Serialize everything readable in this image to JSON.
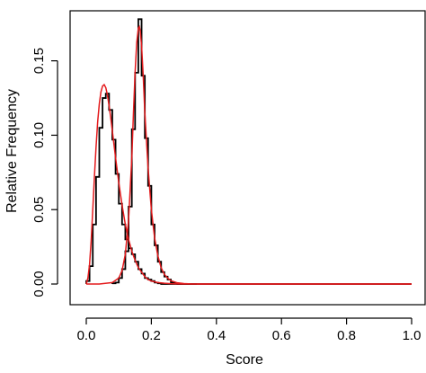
{
  "chart_data": {
    "type": "line",
    "xlabel": "Score",
    "ylabel": "Relative Frequency",
    "xlim": [
      0.0,
      1.0
    ],
    "ylim": [
      0.0,
      0.18
    ],
    "xticks": [
      0.0,
      0.2,
      0.4,
      0.6,
      0.8,
      1.0
    ],
    "xtick_labels": [
      "0.0",
      "0.2",
      "0.4",
      "0.6",
      "0.8",
      "1.0"
    ],
    "yticks": [
      0.0,
      0.05,
      0.1,
      0.15
    ],
    "ytick_labels": [
      "0.00",
      "0.05",
      "0.10",
      "0.15"
    ],
    "grid": false,
    "legend": "none",
    "colors": {
      "histogram": "#000000",
      "fit": "#e41a1c"
    },
    "series": [
      {
        "type": "step",
        "color": "#000000",
        "bin_width": 0.01,
        "x": [
          0.0,
          0.01,
          0.02,
          0.03,
          0.04,
          0.05,
          0.06,
          0.07,
          0.08,
          0.09,
          0.1,
          0.11,
          0.12,
          0.13,
          0.14,
          0.15,
          0.16,
          0.17,
          0.18,
          0.19,
          0.2,
          0.21,
          0.22,
          0.23,
          0.24,
          0.25,
          0.26,
          0.27,
          0.28,
          0.29,
          0.3,
          0.31,
          0.32,
          0.33,
          0.34,
          0.35,
          0.4,
          0.5,
          0.6,
          0.7,
          0.8,
          0.9,
          1.0
        ],
        "values": [
          0.002,
          0.012,
          0.04,
          0.072,
          0.105,
          0.125,
          0.128,
          0.117,
          0.097,
          0.074,
          0.054,
          0.04,
          0.03,
          0.024,
          0.02,
          0.015,
          0.01,
          0.007,
          0.004,
          0.003,
          0.002,
          0.001,
          0.0005,
          0,
          0,
          0,
          0,
          0,
          0,
          0,
          0,
          0,
          0,
          0,
          0,
          0,
          0,
          0,
          0,
          0,
          0,
          0,
          0
        ]
      },
      {
        "type": "step",
        "color": "#000000",
        "bin_width": 0.01,
        "x": [
          0.08,
          0.09,
          0.1,
          0.11,
          0.12,
          0.13,
          0.14,
          0.15,
          0.16,
          0.17,
          0.18,
          0.19,
          0.2,
          0.21,
          0.22,
          0.23,
          0.24,
          0.25,
          0.26,
          0.27,
          0.28,
          0.29,
          0.3,
          0.31,
          0.32,
          0.33
        ],
        "values": [
          0.0005,
          0.001,
          0.004,
          0.01,
          0.022,
          0.052,
          0.104,
          0.142,
          0.178,
          0.14,
          0.098,
          0.066,
          0.04,
          0.026,
          0.015,
          0.008,
          0.005,
          0.003,
          0.001,
          0.0005,
          0,
          0,
          0,
          0,
          0,
          0
        ]
      },
      {
        "type": "line",
        "color": "#e41a1c",
        "x": [
          0.0,
          0.005,
          0.01,
          0.015,
          0.02,
          0.025,
          0.03,
          0.035,
          0.04,
          0.045,
          0.05,
          0.055,
          0.06,
          0.065,
          0.07,
          0.075,
          0.08,
          0.09,
          0.1,
          0.11,
          0.12,
          0.13,
          0.14,
          0.15,
          0.16,
          0.17,
          0.18,
          0.19,
          0.2,
          0.22,
          0.24,
          0.26,
          0.28,
          0.3,
          0.35,
          0.4,
          0.5,
          0.6,
          0.7,
          0.8,
          0.9,
          1.0
        ],
        "values": [
          0.0,
          0.004,
          0.013,
          0.029,
          0.05,
          0.072,
          0.092,
          0.109,
          0.121,
          0.129,
          0.133,
          0.134,
          0.132,
          0.127,
          0.12,
          0.112,
          0.103,
          0.085,
          0.068,
          0.053,
          0.04,
          0.03,
          0.022,
          0.016,
          0.011,
          0.008,
          0.005,
          0.003,
          0.002,
          0.001,
          0.0005,
          0.0002,
          0.0001,
          0,
          0,
          0,
          0,
          0,
          0,
          0,
          0,
          0
        ]
      },
      {
        "type": "line",
        "color": "#e41a1c",
        "x": [
          0.0,
          0.04,
          0.08,
          0.1,
          0.11,
          0.12,
          0.13,
          0.14,
          0.145,
          0.15,
          0.155,
          0.16,
          0.163,
          0.166,
          0.17,
          0.175,
          0.18,
          0.19,
          0.2,
          0.21,
          0.22,
          0.23,
          0.24,
          0.25,
          0.26,
          0.28,
          0.3,
          0.32,
          0.35,
          0.4,
          0.5,
          0.6,
          0.7,
          0.8,
          0.9,
          1.0
        ],
        "values": [
          0.0,
          0.0,
          0.001,
          0.004,
          0.009,
          0.02,
          0.043,
          0.085,
          0.115,
          0.142,
          0.162,
          0.172,
          0.173,
          0.17,
          0.16,
          0.14,
          0.115,
          0.078,
          0.05,
          0.031,
          0.019,
          0.011,
          0.0065,
          0.004,
          0.0022,
          0.0008,
          0.0003,
          0.0001,
          0,
          0,
          0,
          0,
          0,
          0,
          0,
          0
        ]
      }
    ]
  }
}
